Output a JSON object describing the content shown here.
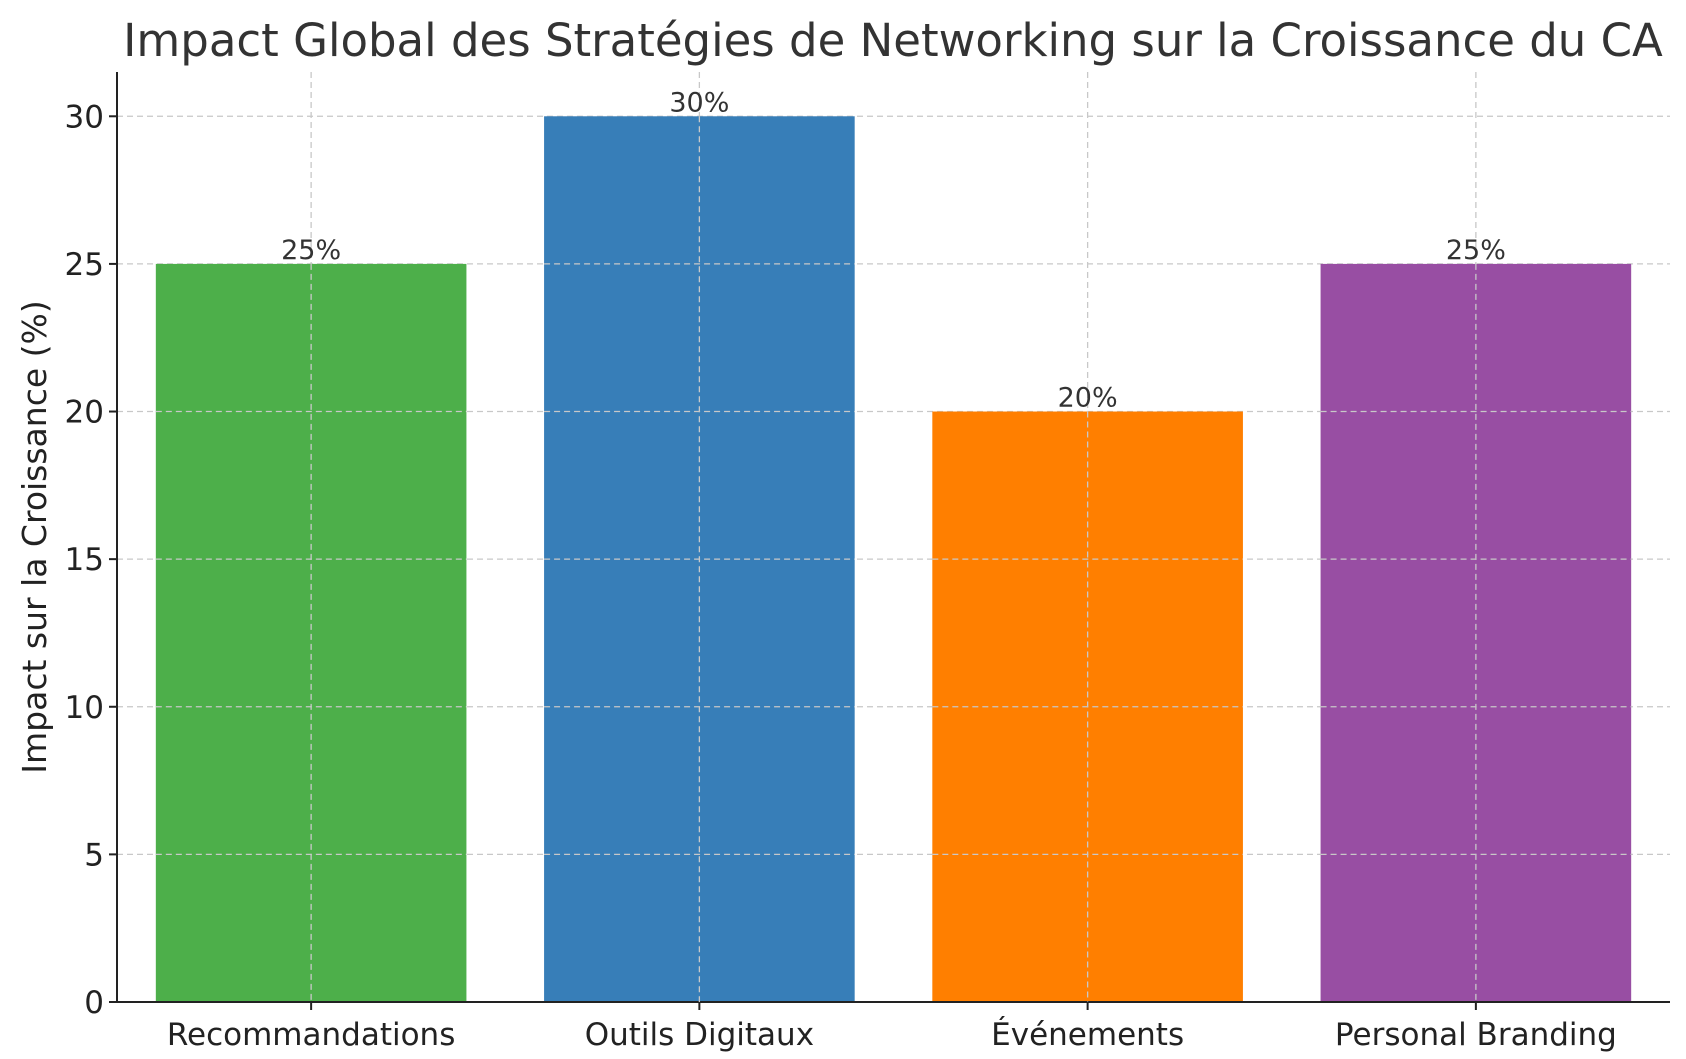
{
  "chart_data": {
    "type": "bar",
    "title": "Impact Global des Stratégies de Networking sur la Croissance du CA",
    "xlabel": "",
    "ylabel": "Impact sur la Croissance (%)",
    "categories": [
      "Recommandations",
      "Outils Digitaux",
      "Événements",
      "Personal Branding"
    ],
    "values": [
      25,
      30,
      20,
      25
    ],
    "data_labels": [
      "25%",
      "30%",
      "20%",
      "25%"
    ],
    "colors": [
      "#4daf4a",
      "#377eb8",
      "#ff7f00",
      "#984ea3"
    ],
    "ylim": [
      0,
      31.5
    ],
    "yticks": [
      0,
      5,
      10,
      15,
      20,
      25,
      30
    ],
    "ytick_labels": [
      "0",
      "5",
      "10",
      "15",
      "20",
      "25",
      "30"
    ],
    "grid": true,
    "legend": "none"
  }
}
